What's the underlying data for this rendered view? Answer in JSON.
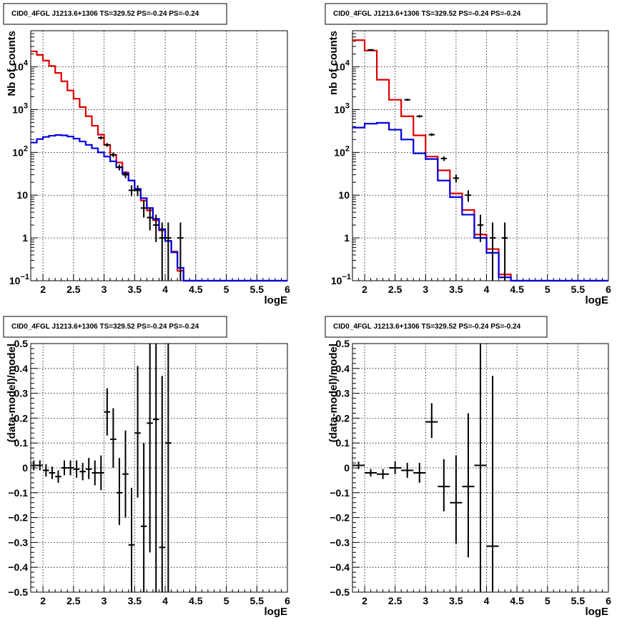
{
  "chart_data": [
    {
      "panel": "top-left",
      "type": "line",
      "title": "CID0_4FGL J1213.6+1306 TS=329.52 PS=-0.24 PS=-0.24",
      "xlabel": "logE",
      "ylabel": "Nb of counts",
      "xlim": [
        1.8,
        6.0
      ],
      "ylim": [
        0.1,
        70000
      ],
      "log_y": true,
      "grid": true,
      "x_ticks": [
        "2",
        "2.5",
        "3",
        "3.5",
        "4",
        "4.5",
        "5",
        "5.5",
        "6"
      ],
      "y_ticks": [
        {
          "v": 0.1,
          "label": "10",
          "sup": "−1"
        },
        {
          "v": 1,
          "label": "1",
          "sup": ""
        },
        {
          "v": 10,
          "label": "10",
          "sup": ""
        },
        {
          "v": 100,
          "label": "10",
          "sup": "2"
        },
        {
          "v": 1000,
          "label": "10",
          "sup": "3"
        },
        {
          "v": 10000,
          "label": "10",
          "sup": "4"
        }
      ],
      "bin_edges": [
        1.8,
        1.9,
        2.0,
        2.1,
        2.2,
        2.3,
        2.4,
        2.5,
        2.6,
        2.7,
        2.8,
        2.9,
        3.0,
        3.1,
        3.2,
        3.3,
        3.4,
        3.5,
        3.6,
        3.7,
        3.8,
        3.9,
        4.0,
        4.1,
        4.2,
        4.3,
        4.4,
        4.5,
        4.6,
        4.7,
        4.8,
        4.9,
        5.0,
        5.1,
        5.2,
        5.3,
        5.4,
        5.5,
        5.6,
        5.7,
        5.8,
        5.9,
        6.0
      ],
      "series": [
        {
          "color": "#e00000",
          "values": [
            23000,
            19000,
            14000,
            10500,
            7200,
            4600,
            2800,
            1800,
            1150,
            700,
            420,
            260,
            150,
            88,
            58,
            34,
            22,
            13,
            7.5,
            4.4,
            2.6,
            1.5,
            0.85,
            0.48,
            0.17,
            0.1,
            0.1,
            0.1,
            0.1,
            0.1,
            0.1,
            0.1,
            0.1,
            0.1,
            0.1,
            0.1,
            0.1,
            0.1,
            0.1,
            0.1,
            0.1,
            0.1
          ]
        },
        {
          "color": "#0000e0",
          "values": [
            170,
            205,
            230,
            245,
            255,
            250,
            235,
            210,
            180,
            150,
            125,
            100,
            80,
            62,
            45,
            32,
            22,
            14,
            8.5,
            5,
            2.8,
            1.6,
            0.85,
            0.46,
            0.2,
            0.1,
            0.1,
            0.1,
            0.1,
            0.1,
            0.1,
            0.1,
            0.1,
            0.1,
            0.1,
            0.1,
            0.1,
            0.1,
            0.1,
            0.1,
            0.1,
            0.1
          ]
        }
      ],
      "data_points": [
        {
          "x": 2.95,
          "y": 220,
          "lo": 200,
          "hi": 240
        },
        {
          "x": 3.05,
          "y": 150,
          "lo": 135,
          "hi": 165
        },
        {
          "x": 3.15,
          "y": 88,
          "lo": 77,
          "hi": 100
        },
        {
          "x": 3.25,
          "y": 45,
          "lo": 38,
          "hi": 52
        },
        {
          "x": 3.35,
          "y": 30,
          "lo": 25,
          "hi": 36
        },
        {
          "x": 3.45,
          "y": 13,
          "lo": 9.5,
          "hi": 17
        },
        {
          "x": 3.55,
          "y": 13,
          "lo": 9.5,
          "hi": 17
        },
        {
          "x": 3.65,
          "y": 5,
          "lo": 3,
          "hi": 7.5
        },
        {
          "x": 3.75,
          "y": 3,
          "lo": 1.5,
          "hi": 5
        },
        {
          "x": 3.85,
          "y": 2,
          "lo": 0.8,
          "hi": 3.5
        },
        {
          "x": 3.95,
          "y": 1,
          "lo": 0.1,
          "hi": 2.3
        },
        {
          "x": 4.05,
          "y": 1,
          "lo": 0.1,
          "hi": 2.3
        },
        {
          "x": 4.25,
          "y": 1,
          "lo": 0.1,
          "hi": 2.3
        }
      ]
    },
    {
      "panel": "top-right",
      "type": "line",
      "title": "CID0_4FGL J1213.6+1306 TS=329.52 PS=-0.24 PS=-0.24",
      "xlabel": "logE",
      "ylabel": "nb of counts",
      "xlim": [
        1.8,
        6.0
      ],
      "ylim": [
        0.1,
        70000
      ],
      "log_y": true,
      "grid": true,
      "x_ticks": [
        "2",
        "2.5",
        "3",
        "3.5",
        "4",
        "4.5",
        "5",
        "5.5",
        "6"
      ],
      "y_ticks": [
        {
          "v": 0.1,
          "label": "10",
          "sup": "−1"
        },
        {
          "v": 1,
          "label": "1",
          "sup": ""
        },
        {
          "v": 10,
          "label": "10",
          "sup": ""
        },
        {
          "v": 100,
          "label": "10",
          "sup": "2"
        },
        {
          "v": 1000,
          "label": "10",
          "sup": "3"
        },
        {
          "v": 10000,
          "label": "10",
          "sup": "4"
        }
      ],
      "bin_edges": [
        1.8,
        2.0,
        2.2,
        2.4,
        2.6,
        2.8,
        3.0,
        3.2,
        3.4,
        3.6,
        3.8,
        4.0,
        4.2,
        4.4,
        4.6,
        4.8,
        5.0,
        5.2,
        5.4,
        5.6,
        5.8,
        6.0
      ],
      "series": [
        {
          "color": "#e00000",
          "values": [
            42000,
            24000,
            5000,
            1700,
            700,
            250,
            80,
            38,
            11,
            4.5,
            1.2,
            0.55,
            0.14,
            0.1,
            0.1,
            0.1,
            0.1,
            0.1,
            0.1,
            0.1,
            0.1
          ]
        },
        {
          "color": "#0000e0",
          "values": [
            380,
            470,
            490,
            340,
            200,
            95,
            70,
            22,
            9,
            3.5,
            1,
            0.45,
            0.12,
            0.1,
            0.1,
            0.1,
            0.1,
            0.1,
            0.1,
            0.1,
            0.1
          ]
        }
      ],
      "data_points": [
        {
          "x": 2.1,
          "y": 25000,
          "lo": 24000,
          "hi": 26000
        },
        {
          "x": 2.7,
          "y": 1700,
          "lo": 1600,
          "hi": 1800
        },
        {
          "x": 2.9,
          "y": 700,
          "lo": 650,
          "hi": 750
        },
        {
          "x": 3.1,
          "y": 260,
          "lo": 240,
          "hi": 280
        },
        {
          "x": 3.3,
          "y": 72,
          "lo": 63,
          "hi": 81
        },
        {
          "x": 3.5,
          "y": 25,
          "lo": 20,
          "hi": 30
        },
        {
          "x": 3.7,
          "y": 10,
          "lo": 7,
          "hi": 13
        },
        {
          "x": 3.9,
          "y": 2,
          "lo": 0.8,
          "hi": 3.5
        },
        {
          "x": 4.1,
          "y": 1,
          "lo": 0.1,
          "hi": 2.3
        },
        {
          "x": 4.3,
          "y": 1,
          "lo": 0.1,
          "hi": 2.3
        }
      ]
    },
    {
      "panel": "bottom-left",
      "type": "scatter",
      "title": "CID0_4FGL J1213.6+1306 TS=329.52 PS=-0.24 PS=-0.24",
      "xlabel": "logE",
      "ylabel": "(data-model)/model",
      "xlim": [
        1.8,
        6.0
      ],
      "ylim": [
        -0.5,
        0.5
      ],
      "log_y": false,
      "grid": true,
      "x_ticks": [
        "2",
        "2.5",
        "3",
        "3.5",
        "4",
        "4.5",
        "5",
        "5.5",
        "6"
      ],
      "y_ticks": [
        {
          "v": -0.5,
          "label": "−0.5"
        },
        {
          "v": -0.4,
          "label": "−0.4"
        },
        {
          "v": -0.3,
          "label": "−0.3"
        },
        {
          "v": -0.2,
          "label": "−0.2"
        },
        {
          "v": -0.1,
          "label": "−0.1"
        },
        {
          "v": 0,
          "label": "0"
        },
        {
          "v": 0.1,
          "label": "0.1"
        },
        {
          "v": 0.2,
          "label": "0.2"
        },
        {
          "v": 0.3,
          "label": "0.3"
        },
        {
          "v": 0.4,
          "label": "0.4"
        },
        {
          "v": 0.5,
          "label": "0.5"
        }
      ],
      "half_width": 0.05,
      "data_points": [
        {
          "x": 1.85,
          "y": 0.01,
          "lo": -0.01,
          "hi": 0.03
        },
        {
          "x": 1.95,
          "y": 0.01,
          "lo": -0.01,
          "hi": 0.03
        },
        {
          "x": 2.05,
          "y": -0.01,
          "lo": -0.035,
          "hi": 0.015
        },
        {
          "x": 2.15,
          "y": -0.02,
          "lo": -0.045,
          "hi": 0.005
        },
        {
          "x": 2.25,
          "y": -0.035,
          "lo": -0.06,
          "hi": -0.01
        },
        {
          "x": 2.35,
          "y": 0.0,
          "lo": -0.03,
          "hi": 0.03
        },
        {
          "x": 2.45,
          "y": 0.0,
          "lo": -0.03,
          "hi": 0.03
        },
        {
          "x": 2.55,
          "y": -0.005,
          "lo": -0.04,
          "hi": 0.03
        },
        {
          "x": 2.65,
          "y": -0.015,
          "lo": -0.05,
          "hi": 0.02
        },
        {
          "x": 2.75,
          "y": -0.005,
          "lo": -0.045,
          "hi": 0.04
        },
        {
          "x": 2.85,
          "y": -0.02,
          "lo": -0.07,
          "hi": 0.03
        },
        {
          "x": 2.95,
          "y": -0.02,
          "lo": -0.09,
          "hi": 0.05
        },
        {
          "x": 3.05,
          "y": 0.225,
          "lo": 0.13,
          "hi": 0.32
        },
        {
          "x": 3.15,
          "y": 0.115,
          "lo": 0.0,
          "hi": 0.24
        },
        {
          "x": 3.25,
          "y": -0.1,
          "lo": -0.23,
          "hi": 0.04
        },
        {
          "x": 3.35,
          "y": -0.025,
          "lo": -0.2,
          "hi": 0.15
        },
        {
          "x": 3.45,
          "y": -0.31,
          "lo": -0.5,
          "hi": -0.08
        },
        {
          "x": 3.55,
          "y": 0.14,
          "lo": -0.12,
          "hi": 0.41
        },
        {
          "x": 3.65,
          "y": -0.235,
          "lo": -0.5,
          "hi": 0.1
        },
        {
          "x": 3.75,
          "y": 0.18,
          "lo": -0.34,
          "hi": 0.5
        },
        {
          "x": 3.85,
          "y": 0.195,
          "lo": -0.5,
          "hi": 0.5
        },
        {
          "x": 3.95,
          "y": -0.32,
          "lo": -0.5,
          "hi": 0.37
        },
        {
          "x": 4.05,
          "y": 0.1,
          "lo": -0.5,
          "hi": 0.5
        }
      ]
    },
    {
      "panel": "bottom-right",
      "type": "scatter",
      "title": "CID0_4FGL J1213.6+1306 TS=329.52 PS=-0.24 PS=-0.24",
      "xlabel": "logE",
      "ylabel": "(data-model)/model",
      "xlim": [
        1.8,
        6.0
      ],
      "ylim": [
        -0.5,
        0.5
      ],
      "log_y": false,
      "grid": true,
      "x_ticks": [
        "2",
        "2.5",
        "3",
        "3.5",
        "4",
        "4.5",
        "5",
        "5.5",
        "6"
      ],
      "y_ticks": [
        {
          "v": -0.5,
          "label": "−0.5"
        },
        {
          "v": -0.4,
          "label": "−0.4"
        },
        {
          "v": -0.3,
          "label": "−0.3"
        },
        {
          "v": -0.2,
          "label": "−0.2"
        },
        {
          "v": -0.1,
          "label": "−0.1"
        },
        {
          "v": 0,
          "label": "0"
        },
        {
          "v": 0.1,
          "label": "0.1"
        },
        {
          "v": 0.2,
          "label": "0.2"
        },
        {
          "v": 0.3,
          "label": "0.3"
        },
        {
          "v": 0.4,
          "label": "0.4"
        },
        {
          "v": 0.5,
          "label": "0.5"
        }
      ],
      "half_width": 0.1,
      "data_points": [
        {
          "x": 1.9,
          "y": 0.01,
          "lo": -0.005,
          "hi": 0.025
        },
        {
          "x": 2.1,
          "y": -0.02,
          "lo": -0.035,
          "hi": -0.005
        },
        {
          "x": 2.3,
          "y": -0.025,
          "lo": -0.045,
          "hi": -0.005
        },
        {
          "x": 2.5,
          "y": 0.0,
          "lo": -0.025,
          "hi": 0.025
        },
        {
          "x": 2.7,
          "y": -0.01,
          "lo": -0.04,
          "hi": 0.02
        },
        {
          "x": 2.9,
          "y": -0.02,
          "lo": -0.06,
          "hi": 0.02
        },
        {
          "x": 3.1,
          "y": 0.185,
          "lo": 0.12,
          "hi": 0.26
        },
        {
          "x": 3.3,
          "y": -0.075,
          "lo": -0.175,
          "hi": 0.035
        },
        {
          "x": 3.5,
          "y": -0.14,
          "lo": -0.305,
          "hi": 0.05
        },
        {
          "x": 3.7,
          "y": -0.075,
          "lo": -0.36,
          "hi": 0.22
        },
        {
          "x": 3.9,
          "y": 0.01,
          "lo": -0.5,
          "hi": 0.5
        },
        {
          "x": 4.1,
          "y": -0.315,
          "lo": -0.5,
          "hi": 0.37
        }
      ]
    }
  ]
}
